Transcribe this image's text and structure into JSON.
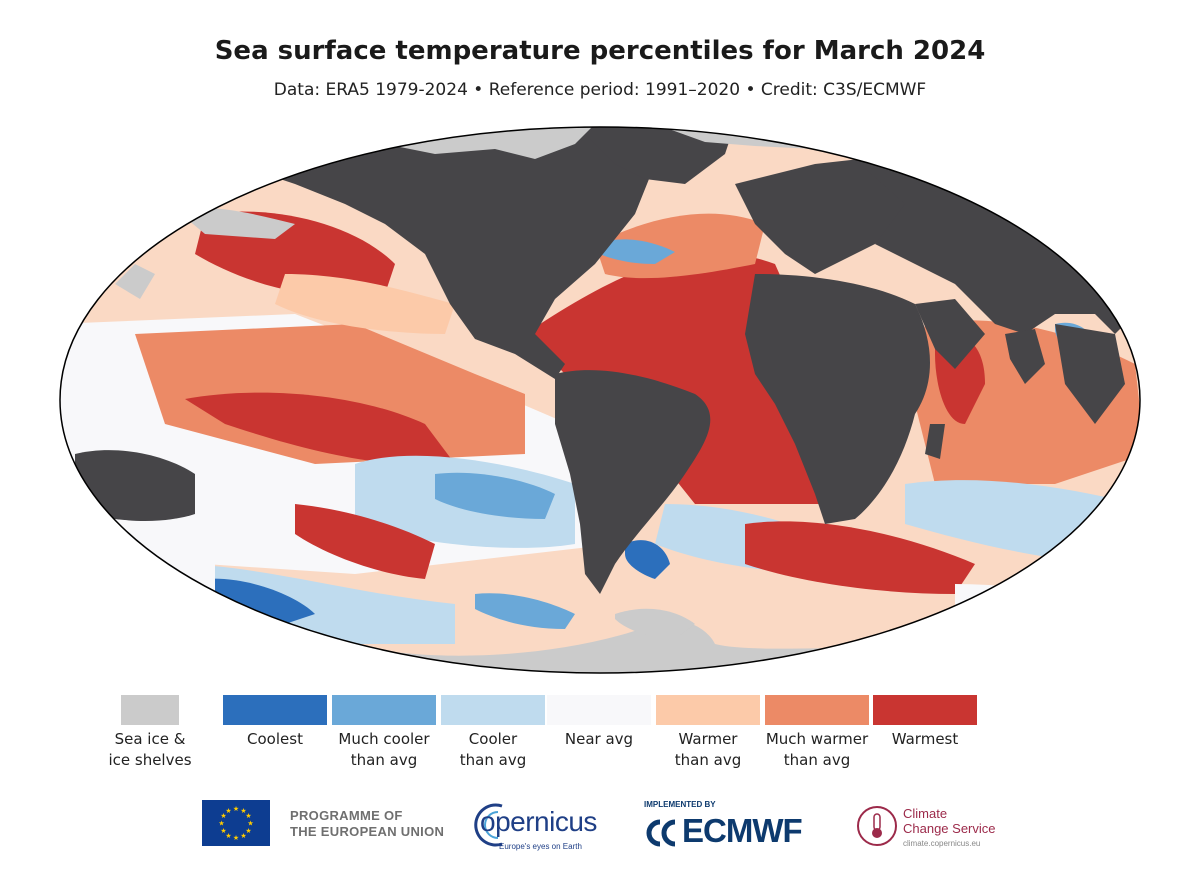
{
  "title": "Sea surface temperature percentiles for March 2024",
  "subtitle": "Data: ERA5 1979-2024 • Reference period: 1991–2020 • Credit: C3S/ECMWF",
  "colors": {
    "sea_ice": "#cbcbcb",
    "land": "#464548",
    "coolest": "#2c6fbc",
    "much_cooler": "#6aa8d8",
    "cooler": "#bfdbee",
    "near_avg": "#f8f8fa",
    "warmer": "#fccaa9",
    "much_warmer": "#ec8a66",
    "warmest": "#c93531"
  },
  "legend": {
    "items": [
      {
        "key": "sea_ice",
        "label_lines": [
          "Sea ice &",
          "ice shelves"
        ]
      },
      {
        "key": "coolest",
        "label_lines": [
          "Coolest"
        ]
      },
      {
        "key": "much_cooler",
        "label_lines": [
          "Much cooler",
          "than avg"
        ]
      },
      {
        "key": "cooler",
        "label_lines": [
          "Cooler",
          "than avg"
        ]
      },
      {
        "key": "near_avg",
        "label_lines": [
          "Near avg"
        ]
      },
      {
        "key": "warmer",
        "label_lines": [
          "Warmer",
          "than avg"
        ]
      },
      {
        "key": "much_warmer",
        "label_lines": [
          "Much warmer",
          "than avg"
        ]
      },
      {
        "key": "warmest",
        "label_lines": [
          "Warmest"
        ]
      }
    ]
  },
  "footer": {
    "eu_line1": "PROGRAMME OF",
    "eu_line2": "THE EUROPEAN UNION",
    "copernicus_word": "opernicus",
    "copernicus_tagline": "Europe's eyes on Earth",
    "ecmwf_implemented": "IMPLEMENTED BY",
    "ecmwf_word": "ECMWF",
    "c3s_line1": "Climate",
    "c3s_line2": "Change Service",
    "c3s_url": "climate.copernicus.eu",
    "eu_flag_icon": "eu-flag-icon",
    "copernicus_icon": "copernicus-logo-icon",
    "ecmwf_icon": "ecmwf-logo-icon",
    "c3s_icon": "thermometer-icon"
  }
}
